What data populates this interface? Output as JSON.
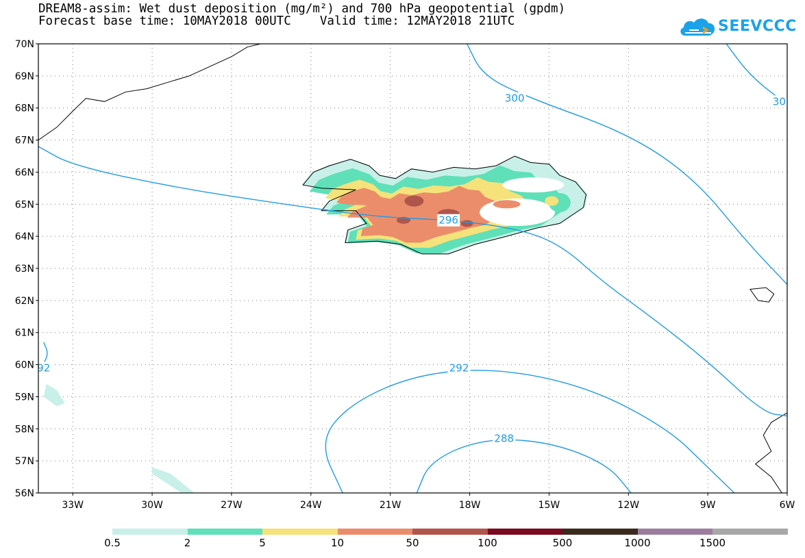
{
  "title": {
    "line1": "DREAM8-assim: Wet dust deposition (mg/m²) and 700 hPa geopotential (gpdm)",
    "line2": "Forecast base time: 10MAY2018 00UTC    Valid time: 12MAY2018 21UTC"
  },
  "logo": {
    "text": "SEEVCCC",
    "icon": "cloud-icon",
    "color": "#1aa3e8"
  },
  "map": {
    "lon_range": [
      -34.3,
      -6
    ],
    "lat_range": [
      56,
      70
    ],
    "grid": "dotted",
    "lat_labels": [
      "70N",
      "69N",
      "68N",
      "67N",
      "66N",
      "65N",
      "64N",
      "63N",
      "62N",
      "61N",
      "60N",
      "59N",
      "58N",
      "57N",
      "56N"
    ],
    "lon_labels": [
      "33W",
      "30W",
      "27W",
      "24W",
      "21W",
      "18W",
      "15W",
      "12W",
      "9W",
      "6W"
    ],
    "contour_labels": [
      {
        "text": "300",
        "lon": -16.3,
        "lat": 68.3
      },
      {
        "text": "30",
        "lon": -6.3,
        "lat": 68.2
      },
      {
        "text": "296",
        "lon": -18.8,
        "lat": 64.5
      },
      {
        "text": "292",
        "lon": -18.4,
        "lat": 59.9
      },
      {
        "text": "288",
        "lon": -16.7,
        "lat": 57.7
      },
      {
        "text": "92",
        "lon": -34.1,
        "lat": 59.9
      }
    ],
    "contour_color": "#1e9be6"
  },
  "colorbar": {
    "labels": [
      "0.5",
      "2",
      "5",
      "10",
      "50",
      "100",
      "500",
      "1000",
      "1500"
    ],
    "colors": [
      "#c8f0e8",
      "#5fe0b8",
      "#f5e27a",
      "#eb8d6b",
      "#b0554a",
      "#7a0a20",
      "#3a2a1e",
      "#9c7da0",
      "#a8a8a8"
    ]
  }
}
